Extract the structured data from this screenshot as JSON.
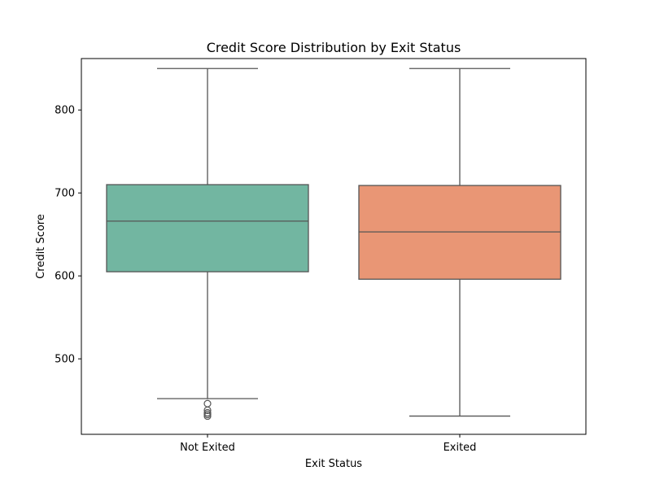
{
  "chart_data": {
    "type": "box",
    "title": "Credit Score Distribution by Exit Status",
    "xlabel": "Exit Status",
    "ylabel": "Credit Score",
    "ylim": [
      409,
      862
    ],
    "yticks": [
      500,
      600,
      700,
      800
    ],
    "grid": false,
    "categories": [
      "Not Exited",
      "Exited"
    ],
    "series": [
      {
        "category": "Not Exited",
        "color": "#72b6a1",
        "whisker_low": 452,
        "q1": 605,
        "median": 666,
        "q3": 710,
        "whisker_high": 850,
        "outliers": [
          446,
          438,
          435,
          433,
          431
        ]
      },
      {
        "category": "Exited",
        "color": "#e99675",
        "whisker_low": 431,
        "q1": 596,
        "median": 653,
        "q3": 709,
        "whisker_high": 850,
        "outliers": []
      }
    ]
  }
}
